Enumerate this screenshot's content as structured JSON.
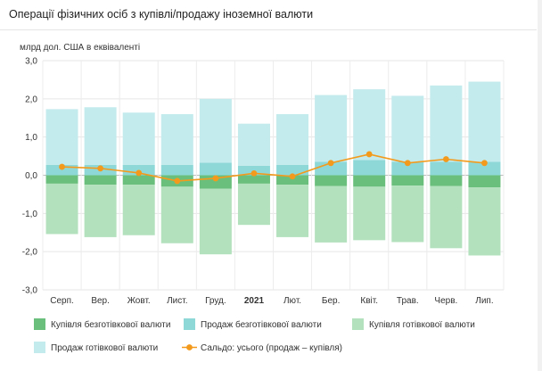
{
  "header": {
    "title": "Операції фізичних осіб з купівлі/продажу іноземної валюти"
  },
  "chart_data": {
    "type": "bar",
    "stacked": true,
    "title": "Операції фізичних осіб з купівлі/продажу іноземної валюти",
    "ylabel": "млрд дол. США в еквіваленті",
    "categories": [
      "Серп.",
      "Вер.",
      "Жовт.",
      "Лист.",
      "Груд.",
      "2021",
      "Лют.",
      "Бер.",
      "Квіт.",
      "Трав.",
      "Черв.",
      "Лип."
    ],
    "bold_categories": [
      "2021"
    ],
    "ylim": [
      -3.0,
      3.0
    ],
    "yticks": [
      "3,0",
      "2,0",
      "1,0",
      "0,0",
      "-1,0",
      "-2,0",
      "-3,0"
    ],
    "ytick_values": [
      3,
      2,
      1,
      0,
      -1,
      -2,
      -3
    ],
    "grid": true,
    "legend_position": "bottom",
    "series": [
      {
        "name": "Купівля безготівкової валюти",
        "kind": "bar",
        "color": "#6bbf7c",
        "values": [
          -0.22,
          -0.25,
          -0.25,
          -0.3,
          -0.35,
          -0.22,
          -0.25,
          -0.28,
          -0.3,
          -0.27,
          -0.28,
          -0.32
        ]
      },
      {
        "name": "Продаж безготівкової валюти",
        "kind": "bar",
        "color": "#8fd8d8",
        "values": [
          0.27,
          0.27,
          0.27,
          0.27,
          0.33,
          0.25,
          0.27,
          0.35,
          0.4,
          0.35,
          0.35,
          0.35
        ]
      },
      {
        "name": "Купівля готівкової валюти",
        "kind": "bar",
        "color": "#b3e1bd",
        "values": [
          -1.32,
          -1.37,
          -1.32,
          -1.48,
          -1.72,
          -1.08,
          -1.37,
          -1.48,
          -1.4,
          -1.48,
          -1.63,
          -1.78
        ]
      },
      {
        "name": "Продаж готівкової валюти",
        "kind": "bar",
        "color": "#c3eaec",
        "values": [
          1.46,
          1.51,
          1.37,
          1.33,
          1.67,
          1.1,
          1.33,
          1.75,
          1.85,
          1.73,
          2.0,
          2.1
        ]
      },
      {
        "name": "Сальдо: усього (продаж – купівля)",
        "kind": "line",
        "color": "#f39a1c",
        "values": [
          0.22,
          0.18,
          0.06,
          -0.15,
          -0.08,
          0.05,
          -0.03,
          0.32,
          0.55,
          0.32,
          0.42,
          0.32
        ]
      }
    ]
  }
}
